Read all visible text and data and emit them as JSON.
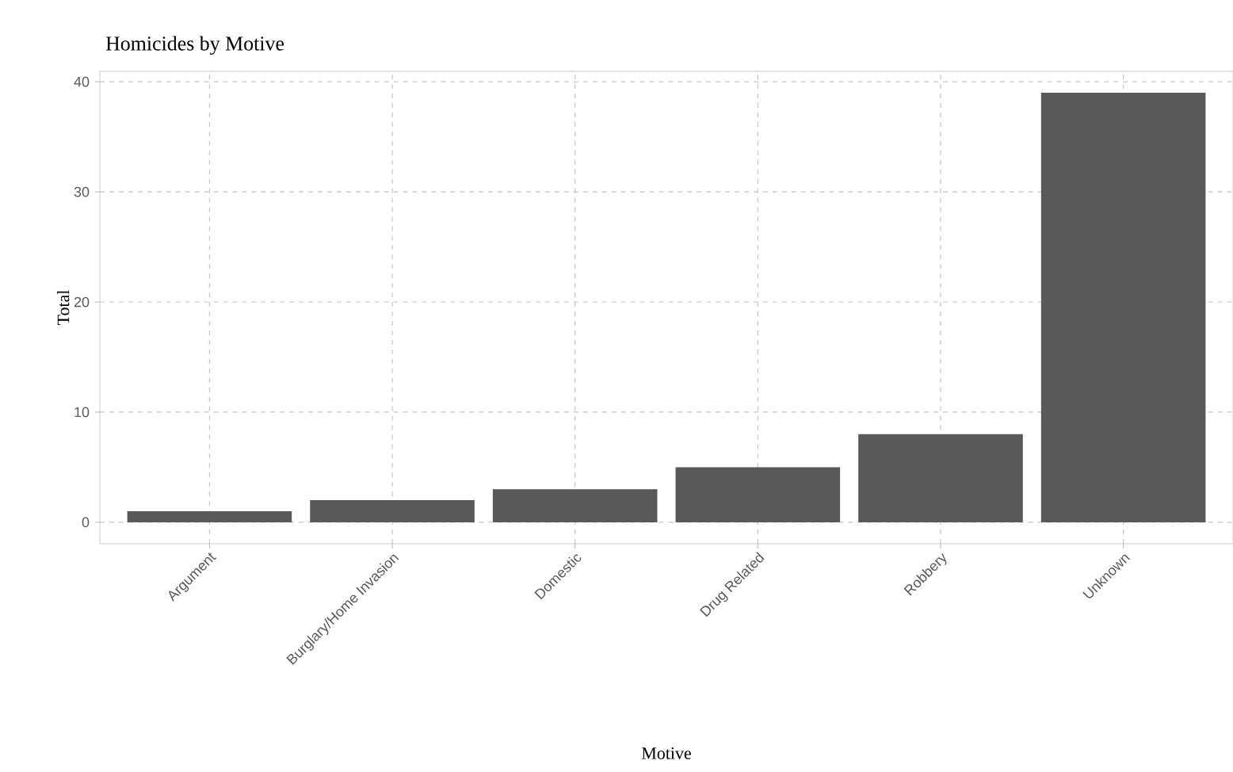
{
  "chart_data": {
    "type": "bar",
    "title": "Homicides by Motive",
    "xlabel": "Motive",
    "ylabel": "Total",
    "categories": [
      "Argument",
      "Burglary/Home Invasion",
      "Domestic",
      "Drug Related",
      "Robbery",
      "Unknown"
    ],
    "values": [
      1,
      2,
      3,
      5,
      8,
      39
    ],
    "color": "#595959",
    "ylim": [
      -1.95,
      40.95
    ],
    "yticks": [
      0,
      10,
      20,
      30,
      40
    ],
    "grid": true
  }
}
